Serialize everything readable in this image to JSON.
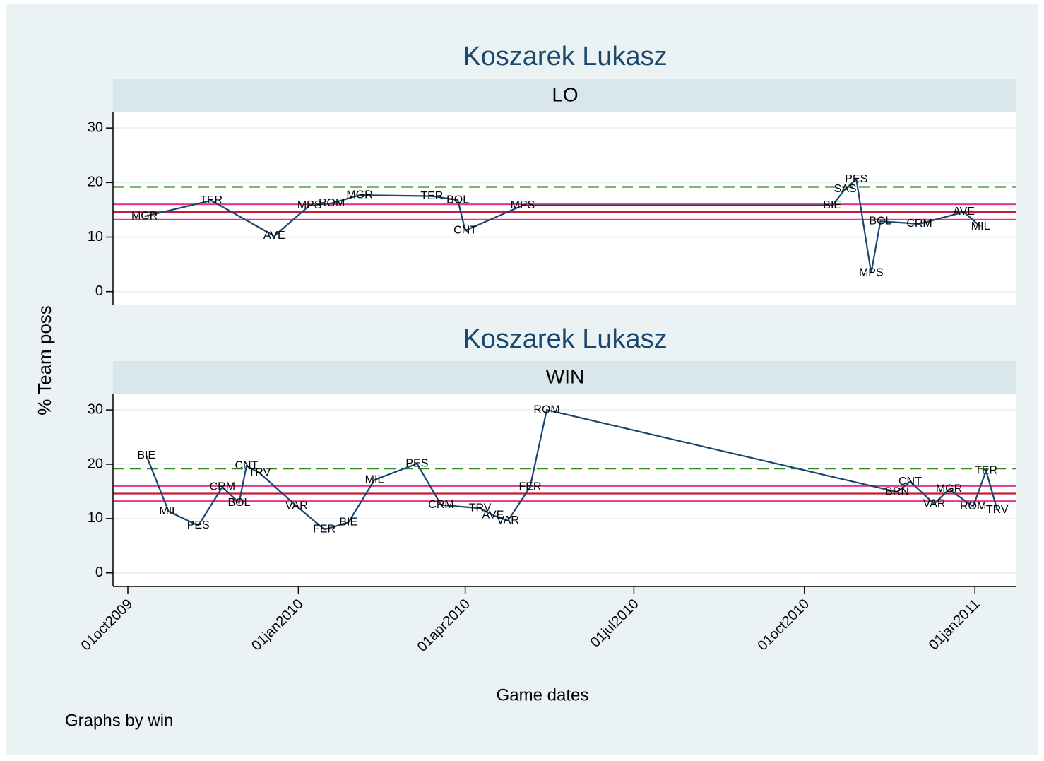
{
  "ylabel": "% Team poss",
  "xlabel": "Game dates",
  "note": "Graphs by win",
  "chart_data": [
    {
      "type": "line",
      "title": "Koszarek Lukasz",
      "subtitle": "LO",
      "color": "#1a476f",
      "xlim": [
        "2009-09-23",
        "2011-01-23"
      ],
      "ylim": [
        -2.5,
        33
      ],
      "yticks": [
        0,
        10,
        20,
        30
      ],
      "grid": true,
      "hlines": [
        {
          "value": 19.2,
          "color": "#2e8b22",
          "dash": true
        },
        {
          "value": 16.0,
          "color": "#e8338b",
          "dash": false
        },
        {
          "value": 14.6,
          "color": "#c41e3a",
          "dash": false
        },
        {
          "value": 13.2,
          "color": "#e8338b",
          "dash": false
        }
      ],
      "x": [
        "2009-10-10",
        "2009-11-15",
        "2009-12-19",
        "2010-01-07",
        "2010-01-19",
        "2010-02-03",
        "2010-03-14",
        "2010-03-28",
        "2010-04-01",
        "2010-05-02",
        "2010-10-16",
        "2010-10-23",
        "2010-10-29",
        "2010-11-06",
        "2010-11-11",
        "2010-12-02",
        "2010-12-26",
        "2011-01-04"
      ],
      "values": [
        13.8,
        16.7,
        10.2,
        15.8,
        16.2,
        17.7,
        17.5,
        16.8,
        11.2,
        15.8,
        15.8,
        18.8,
        20.6,
        3.4,
        12.9,
        12.4,
        14.6,
        11.9
      ],
      "point_labels": [
        "MGR",
        "TER",
        "AVE",
        "MPS",
        "ROM",
        "MGR",
        "TER",
        "BOL",
        "CNT",
        "MPS",
        "BIE",
        "SAS",
        "PES",
        "MPS",
        "BOL",
        "CRM",
        "AVE",
        "MIL"
      ]
    },
    {
      "type": "line",
      "title": "Koszarek Lukasz",
      "subtitle": "WIN",
      "color": "#1a476f",
      "xlim": [
        "2009-09-23",
        "2011-01-23"
      ],
      "ylim": [
        -2.5,
        33
      ],
      "yticks": [
        0,
        10,
        20,
        30
      ],
      "grid": true,
      "xticks": [
        {
          "value": "2009-10-01",
          "label": "01oct2009"
        },
        {
          "value": "2010-01-01",
          "label": "01jan2010"
        },
        {
          "value": "2010-04-01",
          "label": "01apr2010"
        },
        {
          "value": "2010-07-01",
          "label": "01jul2010"
        },
        {
          "value": "2010-10-01",
          "label": "01oct2010"
        },
        {
          "value": "2011-01-01",
          "label": "01jan2011"
        }
      ],
      "hlines": [
        {
          "value": 19.2,
          "color": "#2e8b22",
          "dash": true
        },
        {
          "value": 16.0,
          "color": "#e8338b",
          "dash": false
        },
        {
          "value": 14.6,
          "color": "#c41e3a",
          "dash": false
        },
        {
          "value": 13.2,
          "color": "#e8338b",
          "dash": false
        }
      ],
      "x": [
        "2009-10-11",
        "2009-10-23",
        "2009-11-08",
        "2009-11-21",
        "2009-11-30",
        "2009-12-04",
        "2009-12-11",
        "2009-12-31",
        "2010-01-15",
        "2010-01-28",
        "2010-02-11",
        "2010-03-06",
        "2010-03-19",
        "2010-04-09",
        "2010-04-16",
        "2010-04-24",
        "2010-05-06",
        "2010-05-15",
        "2010-11-20",
        "2010-11-27",
        "2010-12-10",
        "2010-12-18",
        "2010-12-31",
        "2011-01-07",
        "2011-01-13"
      ],
      "values": [
        21.6,
        11.3,
        8.7,
        15.8,
        12.9,
        19.7,
        18.4,
        12.3,
        8.0,
        9.3,
        17.1,
        20.1,
        12.5,
        11.9,
        10.6,
        9.6,
        15.8,
        30.0,
        14.9,
        16.8,
        12.7,
        15.4,
        12.2,
        18.8,
        11.6
      ],
      "point_labels": [
        "BIE",
        "MIL",
        "PES",
        "CRM",
        "BOL",
        "CNT",
        "TRV",
        "VAR",
        "FER",
        "BIE",
        "MIL",
        "PES",
        "CRM",
        "TRV",
        "AVE",
        "VAR",
        "FER",
        "ROM",
        "BRN",
        "CNT",
        "VAR",
        "MGR",
        "ROM",
        "TER",
        "TRV"
      ]
    }
  ]
}
